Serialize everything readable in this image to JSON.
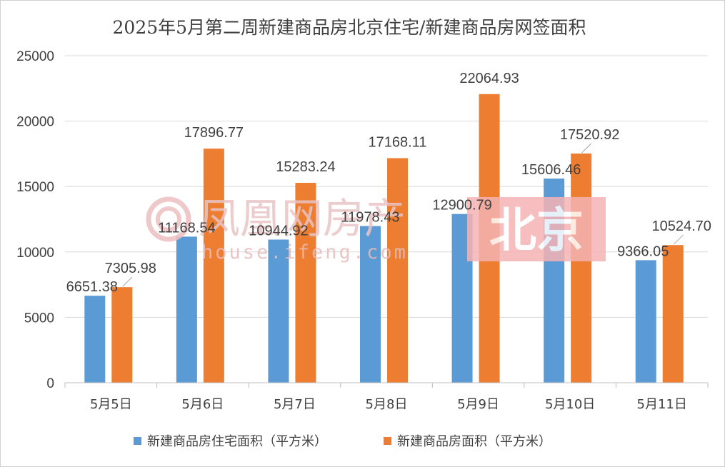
{
  "chart_data": {
    "type": "bar",
    "title": "2025年5月第二周新建商品房北京住宅/新建商品房网签面积",
    "categories": [
      "5月5日",
      "5月6日",
      "5月7日",
      "5月8日",
      "5月9日",
      "5月10日",
      "5月11日"
    ],
    "series": [
      {
        "name": "新建商品房住宅面积（平方米）",
        "color": "#5b9bd5",
        "values": [
          6651.38,
          11168.54,
          10944.92,
          11978.43,
          12900.79,
          15606.46,
          9366.05
        ],
        "labels": [
          "6651.38",
          "11168.54",
          "10944.92",
          "11978.43",
          "12900.79",
          "15606.46",
          "9366.05"
        ]
      },
      {
        "name": "新建商品房面积（平方米）",
        "color": "#ed7d31",
        "values": [
          7305.98,
          17896.77,
          15283.24,
          17168.11,
          22064.93,
          17520.92,
          10524.7
        ],
        "labels": [
          "7305.98",
          "17896.77",
          "15283.24",
          "17168.11",
          "22064.93",
          "17520.92",
          "10524.70"
        ]
      }
    ],
    "ylim": [
      0,
      25000
    ],
    "yticks": [
      "0",
      "5000",
      "10000",
      "15000",
      "20000",
      "25000"
    ],
    "grid": true,
    "legend": "bottom"
  },
  "watermark": {
    "brand": "凤凰网房产",
    "url": "house.ifeng.com",
    "city": "北京",
    "color": "#f5b3b3"
  }
}
